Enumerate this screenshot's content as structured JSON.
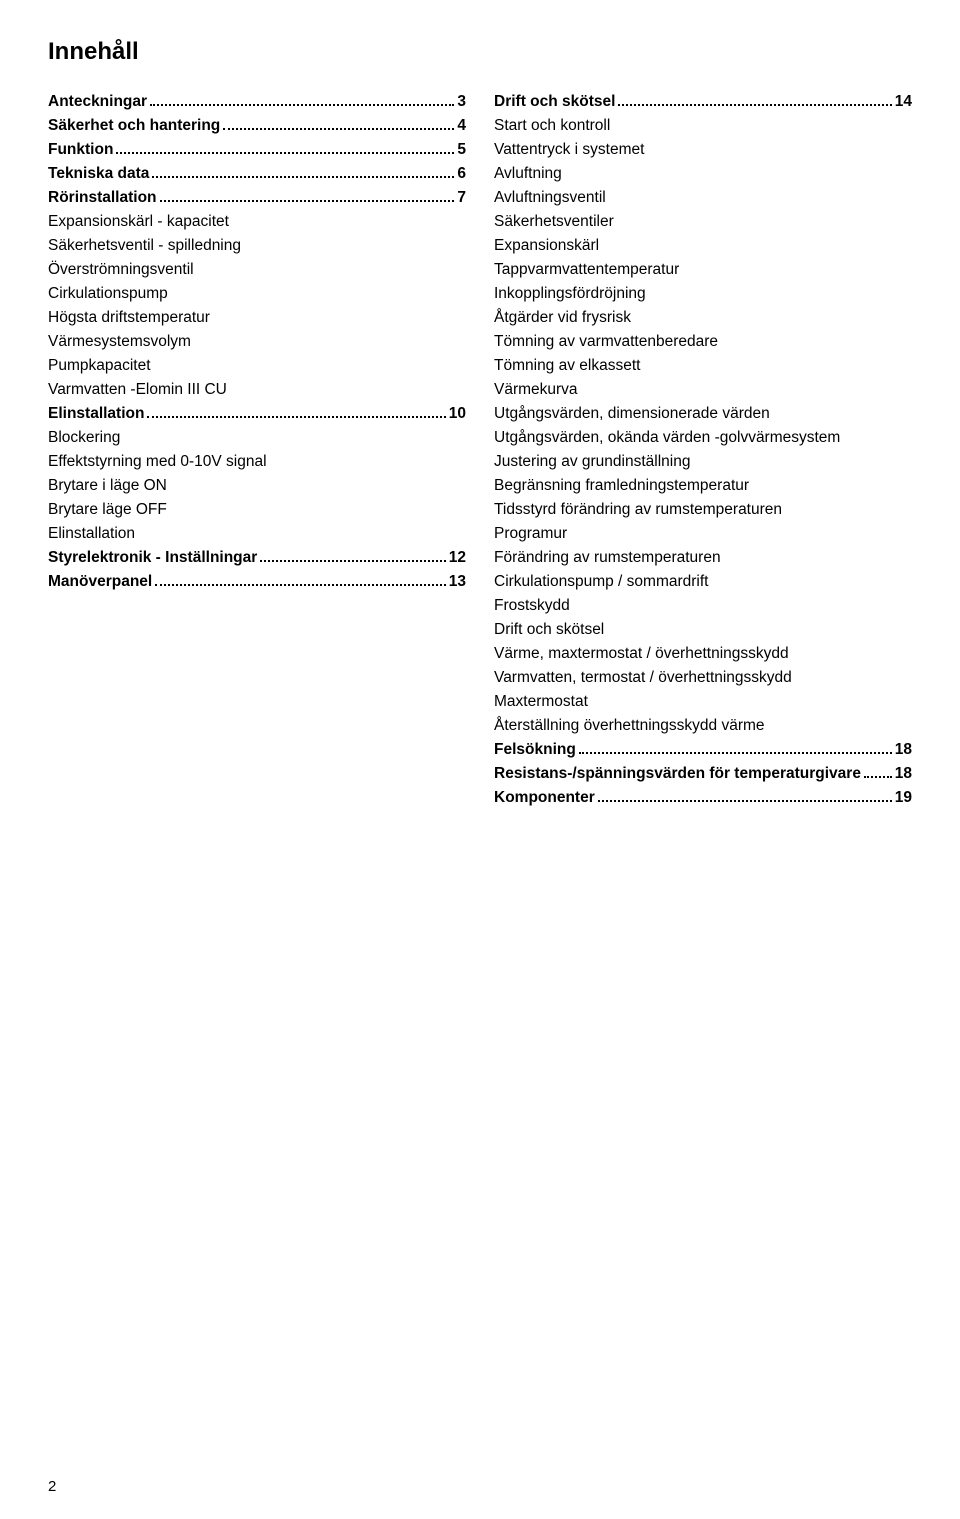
{
  "typography": {
    "font_family": "Arial, Helvetica, sans-serif",
    "title_fontsize_pt": 18,
    "entry_fontsize_pt": 11.5,
    "sub_fontsize_pt": 11.5,
    "title_weight": 700,
    "entry_weight": 700,
    "sub_weight": 400
  },
  "colors": {
    "background": "#ffffff",
    "text": "#000000",
    "dot_leader": "#000000"
  },
  "title": "Innehåll",
  "page_number": "2",
  "left_column": [
    {
      "type": "entry",
      "label": "Anteckningar",
      "page": "3"
    },
    {
      "type": "entry",
      "label": "Säkerhet och hantering",
      "page": "4"
    },
    {
      "type": "entry",
      "label": "Funktion",
      "page": "5"
    },
    {
      "type": "entry",
      "label": "Tekniska data",
      "page": "6"
    },
    {
      "type": "entry",
      "label": "Rörinstallation",
      "page": "7"
    },
    {
      "type": "sub",
      "text": "Expansionskärl - kapacitet"
    },
    {
      "type": "sub",
      "text": "Säkerhetsventil - spilledning"
    },
    {
      "type": "sub",
      "text": "Överströmningsventil"
    },
    {
      "type": "sub",
      "text": "Cirkulationspump"
    },
    {
      "type": "sub",
      "text": "Högsta driftstemperatur"
    },
    {
      "type": "sub",
      "text": "Värmesystemsvolym"
    },
    {
      "type": "sub",
      "text": "Pumpkapacitet"
    },
    {
      "type": "sub",
      "text": "Varmvatten -Elomin III CU"
    },
    {
      "type": "entry",
      "label": "Elinstallation",
      "page": "10"
    },
    {
      "type": "sub",
      "text": "Blockering"
    },
    {
      "type": "sub",
      "text": "Effektstyrning med 0-10V signal"
    },
    {
      "type": "sub",
      "text": "Brytare i läge ON"
    },
    {
      "type": "sub",
      "text": "Brytare läge OFF"
    },
    {
      "type": "sub",
      "text": "Elinstallation"
    },
    {
      "type": "entry",
      "label": "Styrelektronik - Inställningar",
      "page": "12"
    },
    {
      "type": "entry",
      "label": "Manöverpanel",
      "page": "13"
    }
  ],
  "right_column": [
    {
      "type": "entry",
      "label": "Drift och skötsel",
      "page": "14"
    },
    {
      "type": "sub",
      "text": "Start och kontroll"
    },
    {
      "type": "sub",
      "text": "Vattentryck i systemet"
    },
    {
      "type": "sub",
      "text": "Avluftning"
    },
    {
      "type": "sub",
      "text": "Avluftningsventil"
    },
    {
      "type": "sub",
      "text": "Säkerhetsventiler"
    },
    {
      "type": "sub",
      "text": "Expansionskärl"
    },
    {
      "type": "sub",
      "text": "Tappvarmvattentemperatur"
    },
    {
      "type": "sub",
      "text": "Inkopplingsfördröjning"
    },
    {
      "type": "sub",
      "text": "Åtgärder vid frysrisk"
    },
    {
      "type": "sub",
      "text": "Tömning av varmvattenberedare"
    },
    {
      "type": "sub",
      "text": "Tömning av elkassett"
    },
    {
      "type": "sub",
      "text": "Värmekurva"
    },
    {
      "type": "sub",
      "text": "Utgångsvärden, dimensionerade värden"
    },
    {
      "type": "sub",
      "text": "Utgångsvärden, okända värden -golvvärmesystem"
    },
    {
      "type": "sub",
      "text": "Justering av grundinställning"
    },
    {
      "type": "sub",
      "text": "Begränsning framledningstemperatur"
    },
    {
      "type": "sub",
      "text": "Tidsstyrd förändring av rumstemperaturen"
    },
    {
      "type": "sub",
      "text": "Programur"
    },
    {
      "type": "sub",
      "text": "Förändring av rumstemperaturen"
    },
    {
      "type": "sub",
      "text": "Cirkulationspump / sommardrift"
    },
    {
      "type": "sub",
      "text": "Frostskydd"
    },
    {
      "type": "sub",
      "text": "Drift och skötsel"
    },
    {
      "type": "sub",
      "text": "Värme, maxtermostat / överhettningsskydd"
    },
    {
      "type": "sub",
      "text": "Varmvatten, termostat / överhettningsskydd"
    },
    {
      "type": "sub",
      "text": "Maxtermostat"
    },
    {
      "type": "sub",
      "text": "Återställning överhettningsskydd värme"
    },
    {
      "type": "entry",
      "label": "Felsökning",
      "page": "18"
    },
    {
      "type": "entry",
      "label": "Resistans-/spänningsvärden för temperaturgivare",
      "page": "18"
    },
    {
      "type": "entry",
      "label": "Komponenter",
      "page": "19"
    }
  ]
}
